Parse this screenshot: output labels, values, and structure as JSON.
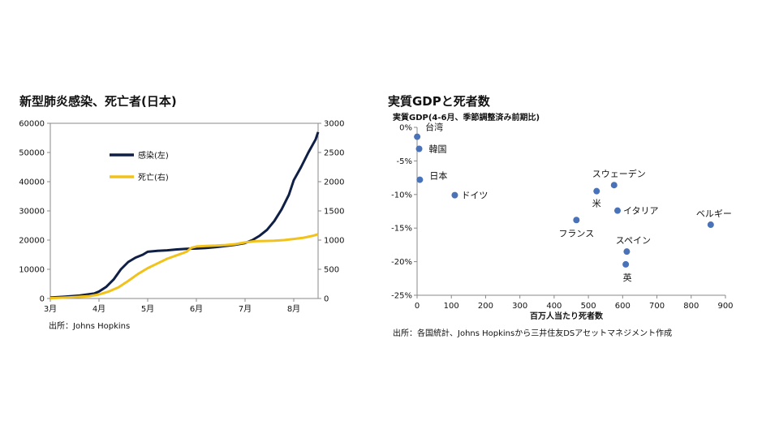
{
  "chart_data": [
    {
      "type": "line",
      "title": "新型肺炎感染、死亡者(日本)",
      "source": "出所：Johns Hopkins",
      "x_ticks": [
        "3月",
        "4月",
        "5月",
        "6月",
        "7月",
        "8月"
      ],
      "x_months": [
        3,
        4,
        5,
        6,
        7,
        8
      ],
      "xlim": [
        3,
        8.5
      ],
      "y_left_ticks": [
        "0",
        "10000",
        "20000",
        "30000",
        "40000",
        "50000",
        "60000"
      ],
      "ylim_left": [
        0,
        60000
      ],
      "y_right_ticks": [
        "0",
        "500",
        "1000",
        "1500",
        "2000",
        "2500",
        "3000"
      ],
      "ylim_right": [
        0,
        3000
      ],
      "legend_position": "upper-left",
      "series": [
        {
          "name": "感染(左)",
          "axis": "left",
          "color": "#0f1f45",
          "x": [
            3.0,
            3.3,
            3.6,
            3.9,
            4.0,
            4.15,
            4.3,
            4.45,
            4.6,
            4.75,
            4.9,
            5.0,
            5.2,
            5.4,
            5.6,
            5.8,
            6.0,
            6.2,
            6.4,
            6.6,
            6.8,
            7.0,
            7.15,
            7.3,
            7.45,
            7.6,
            7.75,
            7.9,
            8.0,
            8.15,
            8.3,
            8.45,
            8.5
          ],
          "y": [
            300,
            600,
            1000,
            1700,
            2400,
            4000,
            6500,
            10000,
            12500,
            14000,
            15000,
            16000,
            16300,
            16500,
            16800,
            17000,
            17100,
            17300,
            17600,
            18000,
            18400,
            19000,
            20000,
            21500,
            23500,
            26500,
            30500,
            35500,
            40500,
            45000,
            50000,
            54500,
            57000
          ]
        },
        {
          "name": "死亡(右)",
          "axis": "right",
          "color": "#f2c21c",
          "x": [
            3.0,
            3.4,
            3.8,
            4.0,
            4.2,
            4.4,
            4.6,
            4.8,
            5.0,
            5.2,
            5.4,
            5.6,
            5.8,
            5.9,
            6.0,
            6.2,
            6.4,
            6.6,
            6.8,
            7.0,
            7.2,
            7.4,
            7.6,
            7.8,
            8.0,
            8.2,
            8.4,
            8.5
          ],
          "y": [
            5,
            20,
            40,
            70,
            120,
            190,
            300,
            420,
            520,
            600,
            680,
            740,
            800,
            870,
            890,
            900,
            905,
            915,
            930,
            960,
            980,
            985,
            990,
            1000,
            1020,
            1040,
            1075,
            1100
          ]
        }
      ]
    },
    {
      "type": "scatter",
      "title": "実質GDPと死者数",
      "subtitle": "実質GDP(4-6月、季節調整済み前期比)",
      "xlabel": "百万人当たり死者数",
      "source": "出所：各国統計、Johns Hopkinsから三井住友DSアセットマネジメント作成",
      "x_ticks": [
        "0",
        "100",
        "200",
        "300",
        "400",
        "500",
        "600",
        "700",
        "800",
        "900"
      ],
      "xlim": [
        0,
        900
      ],
      "y_ticks": [
        "0%",
        "-5%",
        "-10%",
        "-15%",
        "-20%",
        "-25%"
      ],
      "ylim": [
        -25,
        0
      ],
      "color": "#4a72b8",
      "points": [
        {
          "label": "台湾",
          "x": 0.3,
          "y": -1.4
        },
        {
          "label": "韓国",
          "x": 6,
          "y": -3.2
        },
        {
          "label": "日本",
          "x": 8,
          "y": -7.8
        },
        {
          "label": "ドイツ",
          "x": 110,
          "y": -10.1
        },
        {
          "label": "米",
          "x": 524,
          "y": -9.5
        },
        {
          "label": "スウェーデン",
          "x": 575,
          "y": -8.6
        },
        {
          "label": "フランス",
          "x": 465,
          "y": -13.8
        },
        {
          "label": "イタリア",
          "x": 585,
          "y": -12.4
        },
        {
          "label": "ベルギー",
          "x": 857,
          "y": -14.5
        },
        {
          "label": "スペイン",
          "x": 612,
          "y": -18.5
        },
        {
          "label": "英",
          "x": 609,
          "y": -20.4
        }
      ]
    }
  ]
}
